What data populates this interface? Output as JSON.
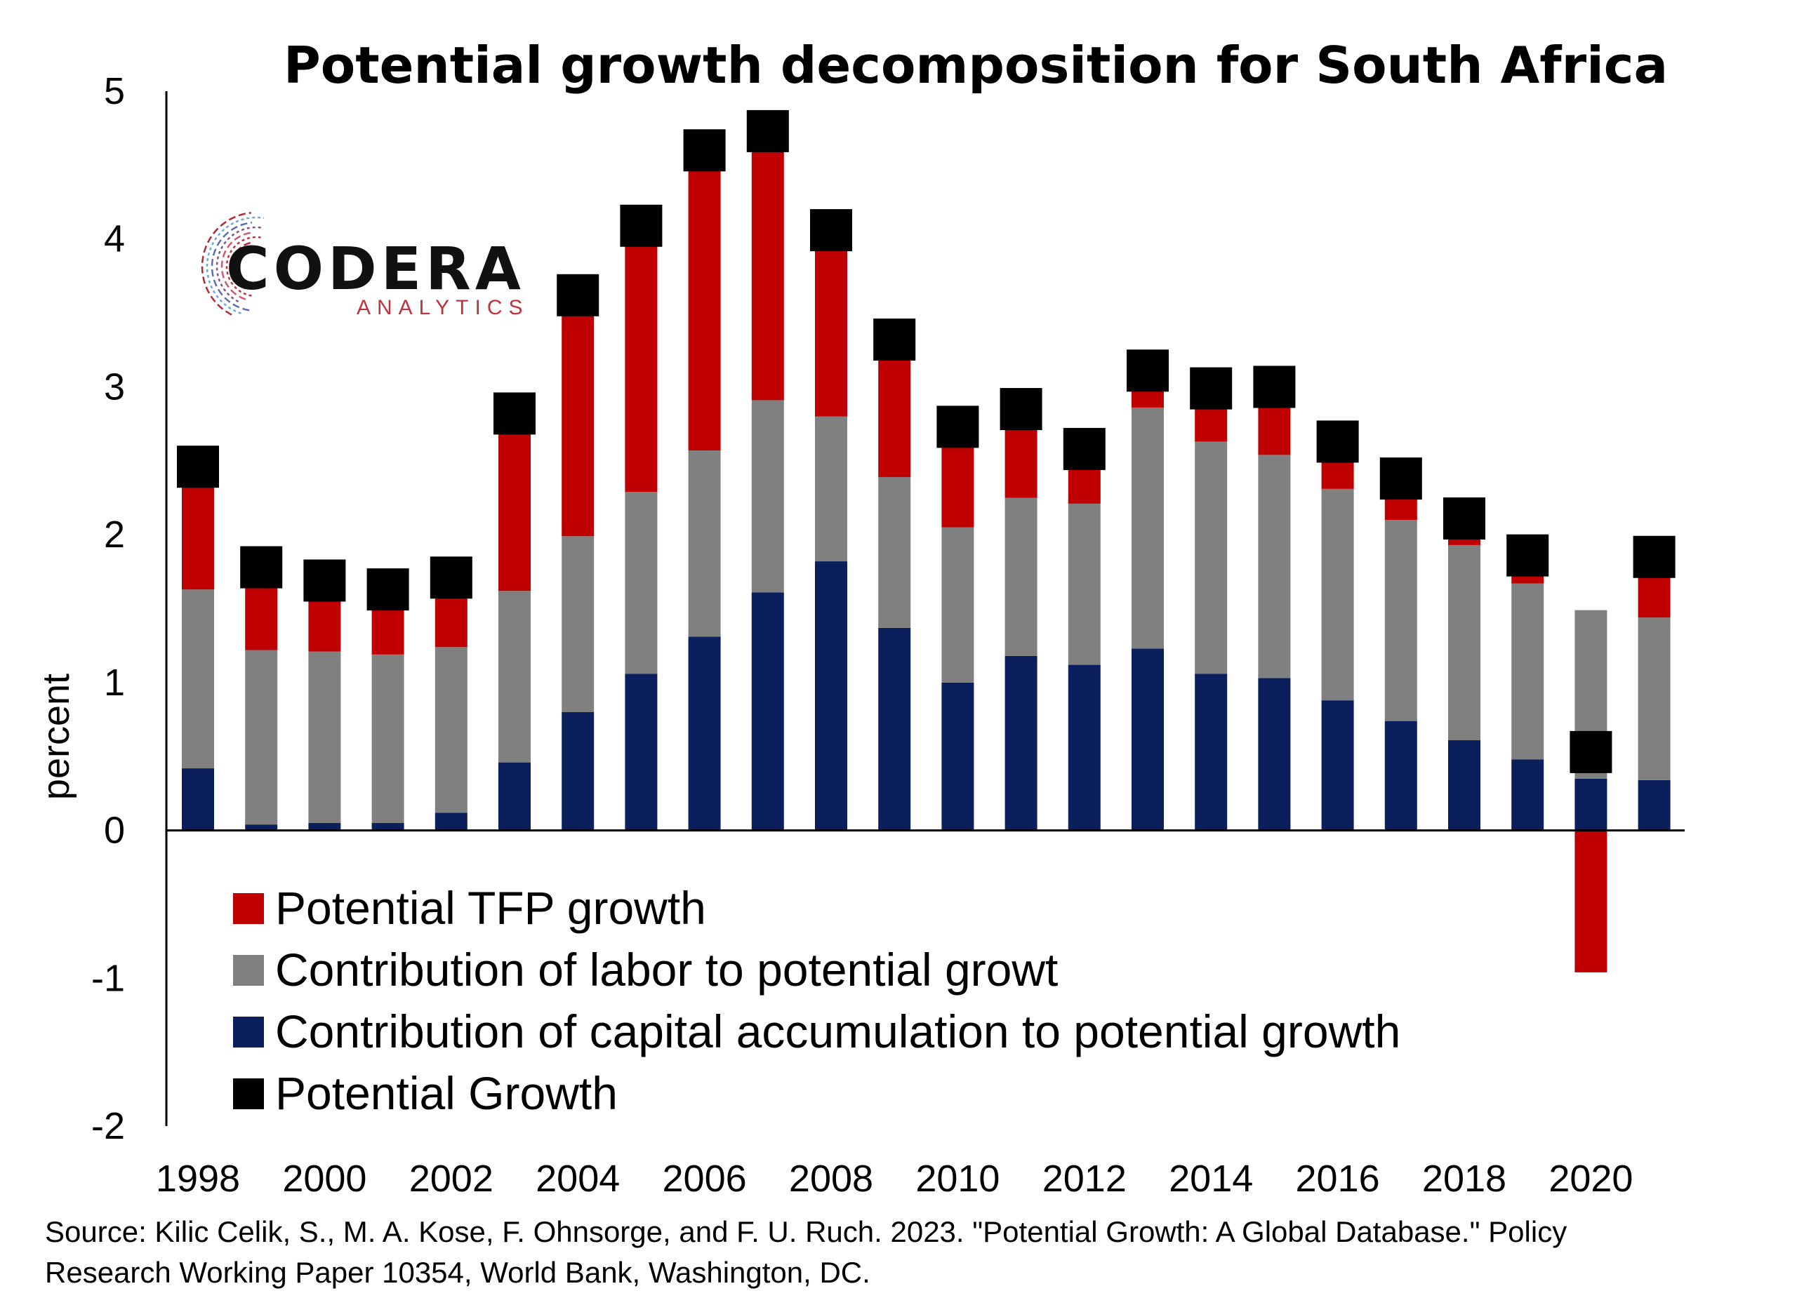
{
  "chart_data": {
    "type": "bar",
    "title": "Potential growth decomposition for South Africa",
    "xlabel": "",
    "ylabel": "percent",
    "ylim": [
      -2,
      5
    ],
    "yticks": [
      "5",
      "4",
      "3",
      "2",
      "1",
      "0",
      "-1",
      "-2"
    ],
    "ytick_values": [
      5,
      4,
      3,
      2,
      1,
      0,
      -1,
      -2
    ],
    "xtick_labels": [
      "1998",
      "2000",
      "2002",
      "2004",
      "2006",
      "2008",
      "2010",
      "2012",
      "2014",
      "2016",
      "2018",
      "2020"
    ],
    "categories": [
      1998,
      1999,
      2000,
      2001,
      2002,
      2003,
      2004,
      2005,
      2006,
      2007,
      2008,
      2009,
      2010,
      2011,
      2012,
      2013,
      2014,
      2015,
      2016,
      2017,
      2018,
      2019,
      2020,
      2021
    ],
    "stacked": true,
    "series": [
      {
        "name": "Contribution of capital accumulation to potential growth",
        "color": "#0b1f5c",
        "values": [
          0.42,
          0.04,
          0.05,
          0.05,
          0.12,
          0.46,
          0.8,
          1.06,
          1.31,
          1.61,
          1.82,
          1.37,
          1.0,
          1.18,
          1.12,
          1.23,
          1.06,
          1.03,
          0.88,
          0.74,
          0.61,
          0.48,
          0.35,
          0.34
        ]
      },
      {
        "name": "Contribution of labor to potential growt",
        "color": "#808080",
        "values": [
          1.21,
          1.18,
          1.16,
          1.14,
          1.12,
          1.16,
          1.19,
          1.23,
          1.26,
          1.3,
          0.98,
          1.02,
          1.05,
          1.07,
          1.09,
          1.63,
          1.57,
          1.51,
          1.43,
          1.36,
          1.32,
          1.19,
          1.14,
          1.1
        ]
      },
      {
        "name": "Potential TFP growth",
        "color": "#c00000",
        "values": [
          0.82,
          0.56,
          0.48,
          0.44,
          0.47,
          1.2,
          1.63,
          1.8,
          2.03,
          1.82,
          1.26,
          0.93,
          0.68,
          0.6,
          0.37,
          0.24,
          0.34,
          0.44,
          0.32,
          0.28,
          0.17,
          0.18,
          -0.96,
          0.41
        ]
      }
    ],
    "markers": {
      "name": "Potential Growth",
      "color": "#000000",
      "values": [
        2.46,
        1.78,
        1.69,
        1.63,
        1.71,
        2.82,
        3.62,
        4.09,
        4.6,
        4.73,
        4.06,
        3.32,
        2.73,
        2.85,
        2.58,
        3.11,
        2.99,
        3.0,
        2.63,
        2.38,
        2.11,
        1.86,
        0.53,
        1.85
      ]
    },
    "legend_placement": "bottom-left inside plot",
    "grid": false,
    "source_lines": [
      "Source: Kilic Celik, S., M. A. Kose, F. Ohnsorge, and F. U. Ruch. 2023. \"Potential Growth: A Global Database.\" Policy",
      "Research Working Paper 10354, World Bank, Washington, DC."
    ]
  },
  "legend": [
    {
      "label": "Potential TFP growth",
      "color": "#c00000"
    },
    {
      "label": "Contribution of labor to potential growt",
      "color": "#808080"
    },
    {
      "label": "Contribution of capital accumulation to potential growth",
      "color": "#0b1f5c"
    },
    {
      "label": "Potential Growth",
      "color": "#000000"
    }
  ],
  "logo": {
    "main": "CODERA",
    "sub": "ANALYTICS"
  }
}
